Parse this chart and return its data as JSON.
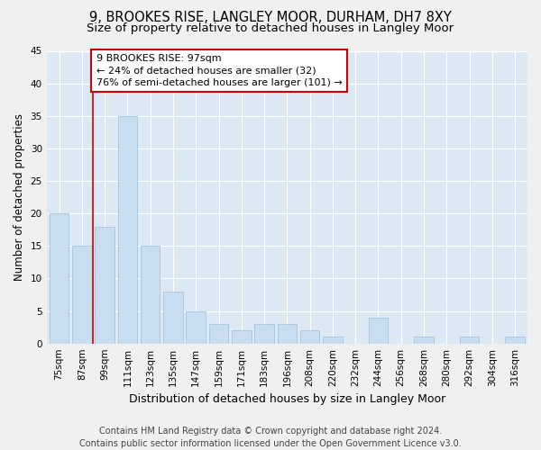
{
  "title": "9, BROOKES RISE, LANGLEY MOOR, DURHAM, DH7 8XY",
  "subtitle": "Size of property relative to detached houses in Langley Moor",
  "xlabel": "Distribution of detached houses by size in Langley Moor",
  "ylabel": "Number of detached properties",
  "categories": [
    "75sqm",
    "87sqm",
    "99sqm",
    "111sqm",
    "123sqm",
    "135sqm",
    "147sqm",
    "159sqm",
    "171sqm",
    "183sqm",
    "196sqm",
    "208sqm",
    "220sqm",
    "232sqm",
    "244sqm",
    "256sqm",
    "268sqm",
    "280sqm",
    "292sqm",
    "304sqm",
    "316sqm"
  ],
  "values": [
    20,
    15,
    18,
    35,
    15,
    8,
    5,
    3,
    2,
    3,
    3,
    2,
    1,
    0,
    4,
    0,
    1,
    0,
    1,
    0,
    1
  ],
  "bar_color": "#c8ddf0",
  "bar_edge_color": "#a8c4e0",
  "annotation_line1": "9 BROOKES RISE: 97sqm",
  "annotation_line2": "← 24% of detached houses are smaller (32)",
  "annotation_line3": "76% of semi-detached houses are larger (101) →",
  "annotation_box_color": "#ffffff",
  "annotation_box_edge": "#cc0000",
  "vline_color": "#cc0000",
  "vline_x_index": 2,
  "ylim": [
    0,
    45
  ],
  "yticks": [
    0,
    5,
    10,
    15,
    20,
    25,
    30,
    35,
    40,
    45
  ],
  "grid_color": "#ffffff",
  "bg_color": "#dce9f5",
  "fig_bg_color": "#f0f0f0",
  "footer_text": "Contains HM Land Registry data © Crown copyright and database right 2024.\nContains public sector information licensed under the Open Government Licence v3.0.",
  "title_fontsize": 10.5,
  "subtitle_fontsize": 9.5,
  "xlabel_fontsize": 9,
  "ylabel_fontsize": 8.5,
  "tick_fontsize": 7.5,
  "annotation_fontsize": 8,
  "footer_fontsize": 7
}
